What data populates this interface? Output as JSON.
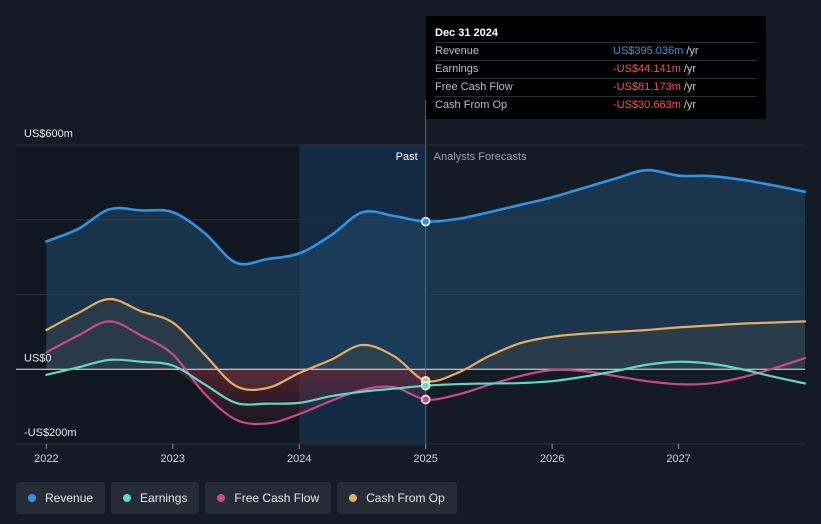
{
  "chart_data": {
    "type": "area",
    "title": "",
    "xlabel": "",
    "ylabel": "",
    "ylim": [
      -200,
      600
    ],
    "y_tick_labels": [
      {
        "value": 600,
        "label": "US$600m"
      },
      {
        "value": 0,
        "label": "US$0"
      },
      {
        "value": -200,
        "label": "-US$200m"
      }
    ],
    "x_ticks": [
      {
        "value": 2022,
        "label": "2022"
      },
      {
        "value": 2023,
        "label": "2023"
      },
      {
        "value": 2024,
        "label": "2024"
      },
      {
        "value": 2025,
        "label": "2025"
      },
      {
        "value": 2026,
        "label": "2026"
      },
      {
        "value": 2027,
        "label": "2027"
      }
    ],
    "xlim": [
      2021.76,
      2028.0
    ],
    "divider_x": 2025.0,
    "highlight_range": [
      2024.0,
      2025.0
    ],
    "past_label": "Past",
    "forecast_label": "Analysts Forecasts",
    "series": [
      {
        "name": "Revenue",
        "color": "#2f93e6",
        "points": [
          [
            2022.0,
            342
          ],
          [
            2022.25,
            375
          ],
          [
            2022.5,
            428
          ],
          [
            2022.75,
            425
          ],
          [
            2023.0,
            420
          ],
          [
            2023.25,
            365
          ],
          [
            2023.5,
            285
          ],
          [
            2023.75,
            295
          ],
          [
            2024.0,
            310
          ],
          [
            2024.25,
            358
          ],
          [
            2024.5,
            420
          ],
          [
            2024.75,
            410
          ],
          [
            2025.0,
            395
          ],
          [
            2025.25,
            402
          ],
          [
            2025.5,
            420
          ],
          [
            2025.75,
            440
          ],
          [
            2026.0,
            460
          ],
          [
            2026.25,
            485
          ],
          [
            2026.5,
            510
          ],
          [
            2026.75,
            533
          ],
          [
            2027.0,
            518
          ],
          [
            2027.25,
            517
          ],
          [
            2027.5,
            507
          ],
          [
            2027.75,
            492
          ],
          [
            2028.0,
            475
          ]
        ]
      },
      {
        "name": "Earnings",
        "color": "#5fd8c8",
        "points": [
          [
            2022.0,
            -15
          ],
          [
            2022.25,
            5
          ],
          [
            2022.5,
            25
          ],
          [
            2022.75,
            20
          ],
          [
            2023.0,
            10
          ],
          [
            2023.25,
            -40
          ],
          [
            2023.5,
            -90
          ],
          [
            2023.75,
            -92
          ],
          [
            2024.0,
            -90
          ],
          [
            2024.25,
            -72
          ],
          [
            2024.5,
            -60
          ],
          [
            2024.75,
            -52
          ],
          [
            2025.0,
            -44
          ],
          [
            2025.25,
            -40
          ],
          [
            2025.5,
            -38
          ],
          [
            2025.75,
            -37
          ],
          [
            2026.0,
            -32
          ],
          [
            2026.25,
            -20
          ],
          [
            2026.5,
            -5
          ],
          [
            2026.75,
            12
          ],
          [
            2027.0,
            20
          ],
          [
            2027.25,
            15
          ],
          [
            2027.5,
            0
          ],
          [
            2027.75,
            -20
          ],
          [
            2028.0,
            -38
          ]
        ]
      },
      {
        "name": "Free Cash Flow",
        "color": "#c94a8a",
        "points": [
          [
            2022.0,
            45
          ],
          [
            2022.25,
            90
          ],
          [
            2022.5,
            128
          ],
          [
            2022.75,
            90
          ],
          [
            2023.0,
            40
          ],
          [
            2023.25,
            -65
          ],
          [
            2023.5,
            -135
          ],
          [
            2023.75,
            -145
          ],
          [
            2024.0,
            -120
          ],
          [
            2024.25,
            -85
          ],
          [
            2024.5,
            -55
          ],
          [
            2024.75,
            -48
          ],
          [
            2025.0,
            -81
          ],
          [
            2025.25,
            -68
          ],
          [
            2025.5,
            -42
          ],
          [
            2025.75,
            -18
          ],
          [
            2026.0,
            -2
          ],
          [
            2026.25,
            -5
          ],
          [
            2026.5,
            -18
          ],
          [
            2026.75,
            -32
          ],
          [
            2027.0,
            -40
          ],
          [
            2027.25,
            -38
          ],
          [
            2027.5,
            -22
          ],
          [
            2027.75,
            2
          ],
          [
            2028.0,
            30
          ]
        ]
      },
      {
        "name": "Cash From Op",
        "color": "#e6ad63",
        "points": [
          [
            2022.0,
            105
          ],
          [
            2022.25,
            150
          ],
          [
            2022.5,
            188
          ],
          [
            2022.75,
            155
          ],
          [
            2023.0,
            125
          ],
          [
            2023.25,
            40
          ],
          [
            2023.5,
            -45
          ],
          [
            2023.75,
            -50
          ],
          [
            2024.0,
            -10
          ],
          [
            2024.25,
            25
          ],
          [
            2024.5,
            65
          ],
          [
            2024.75,
            35
          ],
          [
            2025.0,
            -31
          ],
          [
            2025.25,
            -10
          ],
          [
            2025.5,
            35
          ],
          [
            2025.75,
            70
          ],
          [
            2026.0,
            87
          ],
          [
            2026.25,
            95
          ],
          [
            2026.5,
            100
          ],
          [
            2026.75,
            105
          ],
          [
            2027.0,
            112
          ],
          [
            2027.25,
            117
          ],
          [
            2027.5,
            122
          ],
          [
            2027.75,
            125
          ],
          [
            2028.0,
            128
          ]
        ]
      }
    ],
    "markers": [
      {
        "series": "Revenue",
        "x": 2025.0,
        "y": 395
      },
      {
        "series": "Cash From Op",
        "x": 2025.0,
        "y": -31
      },
      {
        "series": "Earnings",
        "x": 2025.0,
        "y": -44
      },
      {
        "series": "Free Cash Flow",
        "x": 2025.0,
        "y": -81
      }
    ]
  },
  "tooltip": {
    "date": "Dec 31 2024",
    "rows": [
      {
        "name": "Revenue",
        "value": "US$395.036m",
        "unit": "/yr",
        "color": "#2f93e6"
      },
      {
        "name": "Earnings",
        "value": "-US$44.141m",
        "unit": "/yr",
        "color": "#ff4d4d"
      },
      {
        "name": "Free Cash Flow",
        "value": "-US$81.173m",
        "unit": "/yr",
        "color": "#ff4d4d"
      },
      {
        "name": "Cash From Op",
        "value": "-US$30.663m",
        "unit": "/yr",
        "color": "#ff4d4d"
      }
    ]
  },
  "legend": [
    {
      "label": "Revenue",
      "color": "#2f93e6"
    },
    {
      "label": "Earnings",
      "color": "#5fd8c8"
    },
    {
      "label": "Free Cash Flow",
      "color": "#c94a8a"
    },
    {
      "label": "Cash From Op",
      "color": "#e6ad63"
    }
  ]
}
